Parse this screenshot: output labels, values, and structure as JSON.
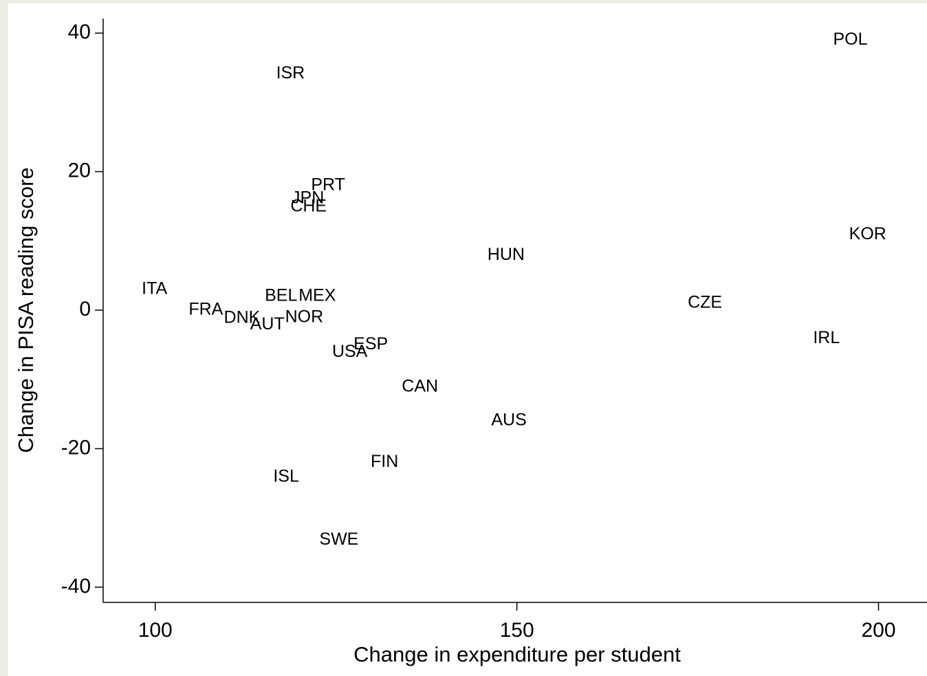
{
  "chart_data": {
    "type": "scatter",
    "xlabel": "Change in expenditure per student",
    "ylabel": "Change in PISA reading score",
    "labels": [
      "POL",
      "ISR",
      "PRT",
      "JPN",
      "CHE",
      "KOR",
      "HUN",
      "ITA",
      "BEL",
      "MEX",
      "CZE",
      "FRA",
      "DNK",
      "AUT",
      "NOR",
      "IRL",
      "ESP",
      "USA",
      "CAN",
      "AUS",
      "FIN",
      "ISL",
      "SWE"
    ],
    "x": [
      196.1,
      118.7,
      123.9,
      121.1,
      121.2,
      198.5,
      148.5,
      99.9,
      117.4,
      122.4,
      176.0,
      107.0,
      112.0,
      115.5,
      120.6,
      192.8,
      129.8,
      126.9,
      136.6,
      148.9,
      131.7,
      118.1,
      125.4
    ],
    "y": [
      39.0,
      34.1,
      18.0,
      16.1,
      14.9,
      10.9,
      7.9,
      3.0,
      2.0,
      2.0,
      1.0,
      0,
      -1.2,
      -2.1,
      -1.1,
      -4.1,
      -5.0,
      -6.1,
      -11.1,
      -16.0,
      -22.0,
      -24.1,
      -33.2
    ],
    "color": "#000000",
    "xlim": [
      92.8,
      206.7
    ],
    "ylim": [
      -42.2,
      42.1
    ],
    "xticks": [
      100,
      150,
      200
    ],
    "yticks": [
      -40,
      -20,
      0,
      20,
      40
    ],
    "grid": false
  }
}
